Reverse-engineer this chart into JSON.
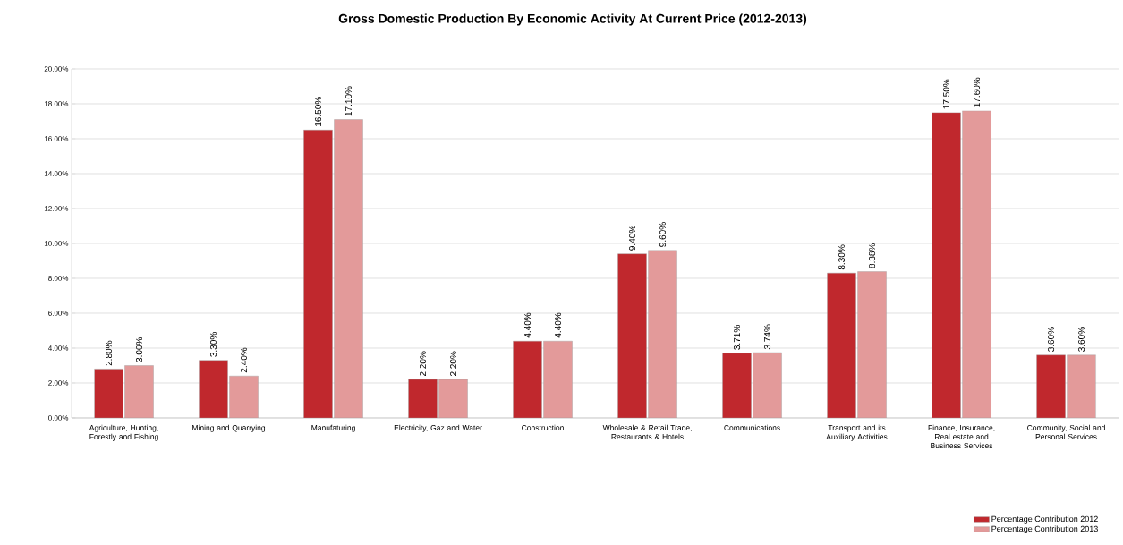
{
  "chart_data": {
    "type": "bar",
    "title": "Gross Domestic Production By Economic Activity At Current Price (2012-2013)",
    "categories": [
      "Agriculture, Hunting, Forestly and Fishing",
      "Mining and Quarrying",
      "Manufaturing",
      "Electricity, Gaz and Water",
      "Construction",
      "Wholesale & Retail Trade, Restaurants & Hotels",
      "Communications",
      "Transport and its Auxiliary Activities",
      "Finance, Insurance, Real estate and Business Services",
      "Community, Social and Personal Services"
    ],
    "series": [
      {
        "name": "Percentage Contribution 2012",
        "color": "#c0282d",
        "values": [
          2.8,
          3.3,
          16.5,
          2.2,
          4.4,
          9.4,
          3.71,
          8.3,
          17.5,
          3.6
        ],
        "value_labels": [
          "2.80%",
          "3.30%",
          "16.50%",
          "2.20%",
          "4.40%",
          "9.40%",
          "3.71%",
          "8.30%",
          "17.50%",
          "3.60%"
        ]
      },
      {
        "name": "Percentage Contribution 2013",
        "color": "#e39a9a",
        "values": [
          3.0,
          2.4,
          17.1,
          2.2,
          4.4,
          9.6,
          3.74,
          8.38,
          17.6,
          3.6
        ],
        "value_labels": [
          "3.00%",
          "2.40%",
          "17.10%",
          "2.20%",
          "4.40%",
          "9.60%",
          "3.74%",
          "8.38%",
          "17.60%",
          "3.60%"
        ]
      }
    ],
    "ylim": [
      0,
      20
    ],
    "yticks": [
      {
        "value": 0,
        "label": "0.00%"
      },
      {
        "value": 2,
        "label": "2.00%"
      },
      {
        "value": 4,
        "label": "4.00%"
      },
      {
        "value": 6,
        "label": "6.00%"
      },
      {
        "value": 8,
        "label": "8.00%"
      },
      {
        "value": 10,
        "label": "10.00%"
      },
      {
        "value": 12,
        "label": "12.00%"
      },
      {
        "value": 14,
        "label": "14.00%"
      },
      {
        "value": 16,
        "label": "16.00%"
      },
      {
        "value": 18,
        "label": "18.00%"
      },
      {
        "value": 20,
        "label": "20.00%"
      }
    ],
    "grid": "y",
    "legend": "bottom right"
  }
}
